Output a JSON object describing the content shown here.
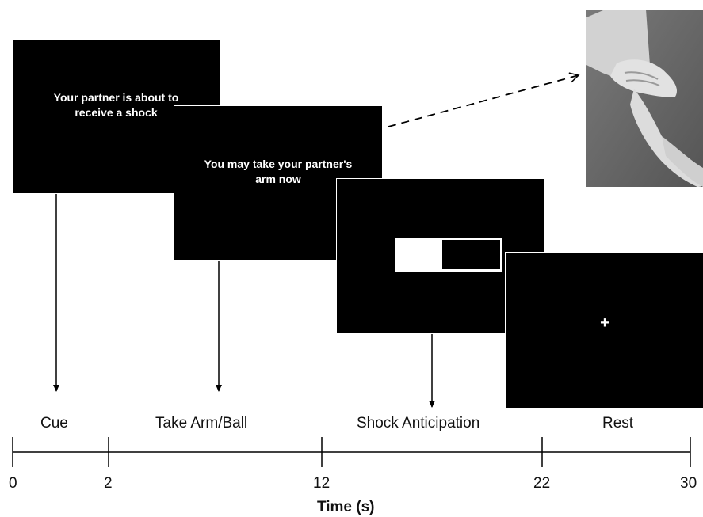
{
  "screens": {
    "cue_text": "Your partner is about to\nreceive a shock",
    "take_arm_text": "You may take your partner's\narm now",
    "rest_symbol": "+"
  },
  "phases": {
    "cue": "Cue",
    "take": "Take Arm/Ball",
    "shock": "Shock Anticipation",
    "rest": "Rest"
  },
  "timeline": {
    "ticks": [
      "0",
      "2",
      "12",
      "22",
      "30"
    ],
    "title": "Time (s)"
  },
  "colors": {
    "screen": "#000000",
    "text": "#ffffff",
    "line": "#000000"
  },
  "icons": {
    "photo": "hand-holding-arm-photo",
    "arrow": "dashed-arrow-icon"
  }
}
